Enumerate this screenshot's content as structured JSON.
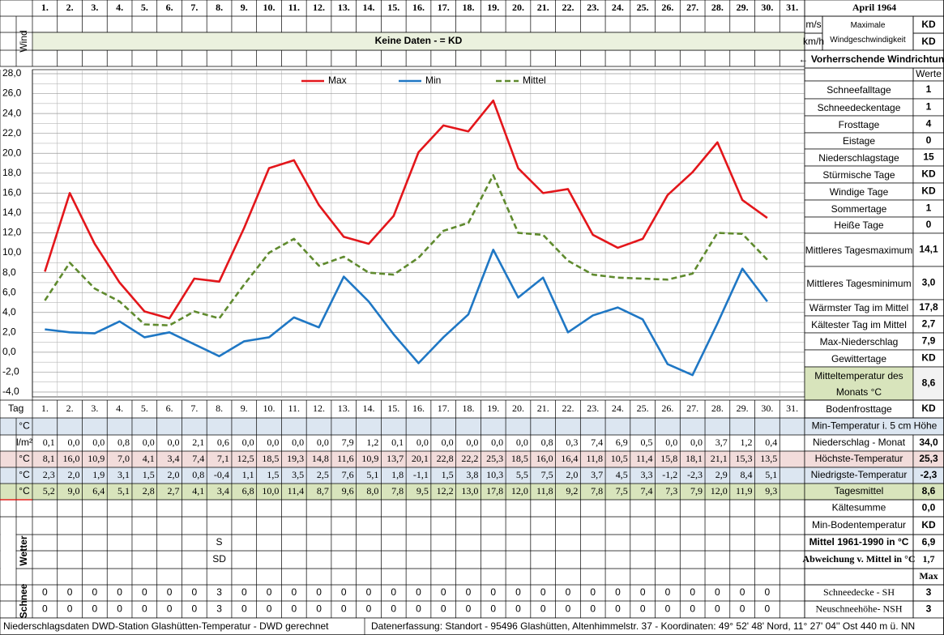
{
  "header": {
    "month": "April 1964",
    "wind_label": "Wind",
    "no_data": "Keine Daten -  = KD",
    "wind_units": [
      "m/s",
      "km/h"
    ],
    "max_wind_label": "Maximale Windgeschwindigkeit",
    "max_wind_values": [
      "KD",
      "KD"
    ],
    "wind_direction": "← Vorherrschende Windrichtung"
  },
  "days": [
    "1.",
    "2.",
    "3.",
    "4.",
    "5.",
    "6.",
    "7.",
    "8.",
    "9.",
    "10.",
    "11.",
    "12.",
    "13.",
    "14.",
    "15.",
    "16.",
    "17.",
    "18.",
    "19.",
    "20.",
    "21.",
    "22.",
    "23.",
    "24.",
    "25.",
    "26.",
    "27.",
    "28.",
    "29.",
    "30.",
    "31."
  ],
  "tag_label": "Tag",
  "chart_data": {
    "type": "line",
    "categories": [
      "1.",
      "2.",
      "3.",
      "4.",
      "5.",
      "6.",
      "7.",
      "8.",
      "9.",
      "10.",
      "11.",
      "12.",
      "13.",
      "14.",
      "15.",
      "16.",
      "17.",
      "18.",
      "19.",
      "20.",
      "21.",
      "22.",
      "23.",
      "24.",
      "25.",
      "26.",
      "27.",
      "28.",
      "29.",
      "30.",
      "31."
    ],
    "ylim": [
      -4,
      28
    ],
    "yticks": [
      {
        "value": -4,
        "label": "-4,0"
      },
      {
        "value": -2,
        "label": "-2,0"
      },
      {
        "value": 0,
        "label": "0,0"
      },
      {
        "value": 2,
        "label": "2,0"
      },
      {
        "value": 4,
        "label": "4,0"
      },
      {
        "value": 6,
        "label": "6,0"
      },
      {
        "value": 8,
        "label": "8,0"
      },
      {
        "value": 10,
        "label": "10,0"
      },
      {
        "value": 12,
        "label": "12,0"
      },
      {
        "value": 14,
        "label": "14,0"
      },
      {
        "value": 16,
        "label": "16,0"
      },
      {
        "value": 18,
        "label": "18,0"
      },
      {
        "value": 20,
        "label": "20,0"
      },
      {
        "value": 22,
        "label": "22,0"
      },
      {
        "value": 24,
        "label": "24,0"
      },
      {
        "value": 26,
        "label": "26,0"
      },
      {
        "value": 28,
        "label": "28,0"
      }
    ],
    "grid": true,
    "legend": "top",
    "series": [
      {
        "name": "Max",
        "color": "#e3161b",
        "style": "solid",
        "values": [
          8.1,
          16.0,
          10.9,
          7.0,
          4.1,
          3.4,
          7.4,
          7.1,
          12.5,
          18.5,
          19.3,
          14.8,
          11.6,
          10.9,
          13.7,
          20.1,
          22.8,
          22.2,
          25.3,
          18.5,
          16.0,
          16.4,
          11.8,
          10.5,
          11.4,
          15.8,
          18.1,
          21.1,
          15.3,
          13.5,
          null
        ],
        "value_labels": [
          "8,1",
          "16,0",
          "10,9",
          "7,0",
          "4,1",
          "3,4",
          "7,4",
          "7,1",
          "12,5",
          "18,5",
          "19,3",
          "14,8",
          "11,6",
          "10,9",
          "13,7",
          "20,1",
          "22,8",
          "22,2",
          "25,3",
          "18,5",
          "16,0",
          "16,4",
          "11,8",
          "10,5",
          "11,4",
          "15,8",
          "18,1",
          "21,1",
          "15,3",
          "13,5",
          null
        ]
      },
      {
        "name": "Min",
        "color": "#1f77c4",
        "style": "solid",
        "values": [
          2.3,
          2.0,
          1.9,
          3.1,
          1.5,
          2.0,
          0.8,
          -0.4,
          1.1,
          1.5,
          3.5,
          2.5,
          7.6,
          5.1,
          1.8,
          -1.1,
          1.5,
          3.8,
          10.3,
          5.5,
          7.5,
          2.0,
          3.7,
          4.5,
          3.3,
          -1.2,
          -2.3,
          2.9,
          8.4,
          5.1,
          null
        ],
        "value_labels": [
          "2,3",
          "2,0",
          "1,9",
          "3,1",
          "1,5",
          "2,0",
          "0,8",
          "-0,4",
          "1,1",
          "1,5",
          "3,5",
          "2,5",
          "7,6",
          "5,1",
          "1,8",
          "-1,1",
          "1,5",
          "3,8",
          "10,3",
          "5,5",
          "7,5",
          "2,0",
          "3,7",
          "4,5",
          "3,3",
          "-1,2",
          "-2,3",
          "2,9",
          "8,4",
          "5,1",
          null
        ]
      },
      {
        "name": "Mittel",
        "color": "#5f8a2e",
        "style": "dashed",
        "values": [
          5.2,
          9.0,
          6.4,
          5.1,
          2.8,
          2.7,
          4.1,
          3.4,
          6.8,
          10.0,
          11.4,
          8.7,
          9.6,
          8.0,
          7.8,
          9.5,
          12.2,
          13.0,
          17.8,
          12.0,
          11.8,
          9.2,
          7.8,
          7.5,
          7.4,
          7.3,
          7.9,
          12.0,
          11.9,
          9.3,
          null
        ],
        "value_labels": [
          "5,2",
          "9,0",
          "6,4",
          "5,1",
          "2,8",
          "2,7",
          "4,1",
          "3,4",
          "6,8",
          "10,0",
          "11,4",
          "8,7",
          "9,6",
          "8,0",
          "7,8",
          "9,5",
          "12,2",
          "13,0",
          "17,8",
          "12,0",
          "11,8",
          "9,2",
          "7,8",
          "7,5",
          "7,4",
          "7,3",
          "7,9",
          "12,0",
          "11,9",
          "9,3",
          null
        ]
      }
    ]
  },
  "stats_header": "Werte",
  "stats": [
    {
      "label": "Schneefalltage",
      "value": "1"
    },
    {
      "label": "Schneedeckentage",
      "value": "1"
    },
    {
      "label": "Frosttage",
      "value": "4"
    },
    {
      "label": "Eistage",
      "value": "0"
    },
    {
      "label": "Niederschlagstage",
      "value": "15"
    },
    {
      "label": "Stürmische Tage",
      "value": "KD"
    },
    {
      "label": "Windige Tage",
      "value": "KD"
    },
    {
      "label": "Sommertage",
      "value": "1"
    },
    {
      "label": "Heiße Tage",
      "value": "0"
    },
    {
      "label": "Mittleres Tagesmaximum",
      "value": "14,1"
    },
    {
      "label": "Mittleres Tagesminimum",
      "value": "3,0"
    },
    {
      "label": "Wärmster Tag im Mittel",
      "value": "17,8"
    },
    {
      "label": "Kältester Tag im Mittel",
      "value": "2,7"
    },
    {
      "label": "Max-Niederschlag",
      "value": "7,9"
    },
    {
      "label": "Gewittertage",
      "value": "KD"
    },
    {
      "label": "Mitteltemperatur des Monats °C",
      "value": "8,6"
    },
    {
      "label": "Bodenfrosttage",
      "value": "KD"
    }
  ],
  "table": {
    "rows": [
      {
        "unit": "°C",
        "label": "Min-Temperatur i. 5 cm Höhe"
      },
      {
        "unit": "l/m²",
        "values": [
          "0,1",
          "0,0",
          "0,0",
          "0,8",
          "0,0",
          "0,0",
          "2,1",
          "0,6",
          "0,0",
          "0,0",
          "0,0",
          "0,0",
          "7,9",
          "1,2",
          "0,1",
          "0,0",
          "0,0",
          "0,0",
          "0,0",
          "0,0",
          "0,8",
          "0,3",
          "7,4",
          "6,9",
          "0,5",
          "0,0",
          "0,0",
          "3,7",
          "1,2",
          "0,4"
        ],
        "label": "Niederschlag - Monat",
        "value": "34,0"
      },
      {
        "unit": "°C",
        "label": "Höchste-Temperatur",
        "value": "25,3"
      },
      {
        "unit": "°C",
        "label": "Niedrigste-Temperatur",
        "value": "-2,3"
      },
      {
        "unit": "°C",
        "label": "Tagesmittel",
        "value": "8,6"
      }
    ]
  },
  "summary": [
    {
      "label": "Kältesumme",
      "value": "0,0"
    },
    {
      "label": "Min-Bodentemperatur",
      "value": "KD"
    },
    {
      "label": "Mittel 1961-1990 in °C",
      "value": "6,9"
    },
    {
      "label": "Abweichung v. Mittel in °C",
      "value": "1,7"
    },
    {
      "label": "Max"
    }
  ],
  "weather": {
    "label": "Wetter",
    "rows": [
      [
        null,
        null,
        null,
        null,
        null,
        null,
        null,
        "S",
        null,
        null,
        null,
        null,
        null,
        null,
        null,
        null,
        null,
        null,
        null,
        null,
        null,
        null,
        null,
        null,
        null,
        null,
        null,
        null,
        null,
        null
      ],
      [
        null,
        null,
        null,
        null,
        null,
        null,
        null,
        "SD",
        null,
        null,
        null,
        null,
        null,
        null,
        null,
        null,
        null,
        null,
        null,
        null,
        null,
        null,
        null,
        null,
        null,
        null,
        null,
        null,
        null,
        null
      ]
    ]
  },
  "snow": {
    "label": "Schnee",
    "rows": [
      {
        "values": [
          "0",
          "0",
          "0",
          "0",
          "0",
          "0",
          "0",
          "3",
          "0",
          "0",
          "0",
          "0",
          "0",
          "0",
          "0",
          "0",
          "0",
          "0",
          "0",
          "0",
          "0",
          "0",
          "0",
          "0",
          "0",
          "0",
          "0",
          "0",
          "0",
          "0"
        ],
        "label": "Schneedecke -  SH",
        "value": "3"
      },
      {
        "values": [
          "0",
          "0",
          "0",
          "0",
          "0",
          "0",
          "0",
          "3",
          "0",
          "0",
          "0",
          "0",
          "0",
          "0",
          "0",
          "0",
          "0",
          "0",
          "0",
          "0",
          "0",
          "0",
          "0",
          "0",
          "0",
          "0",
          "0",
          "0",
          "0",
          "0"
        ],
        "label": "Neuschneehöhe- NSH",
        "value": "3"
      }
    ]
  },
  "footer": {
    "left": "Niederschlagsdaten DWD-Station Glashütten-Temperatur -  DWD gerechnet",
    "right": "Datenerfassung: Standort -  95496  Glashütten, Altenhimmelstr. 37 - Koordinaten:  49° 52' 48' Nord,  11° 27' 04'' Ost  440 m ü. NN"
  }
}
